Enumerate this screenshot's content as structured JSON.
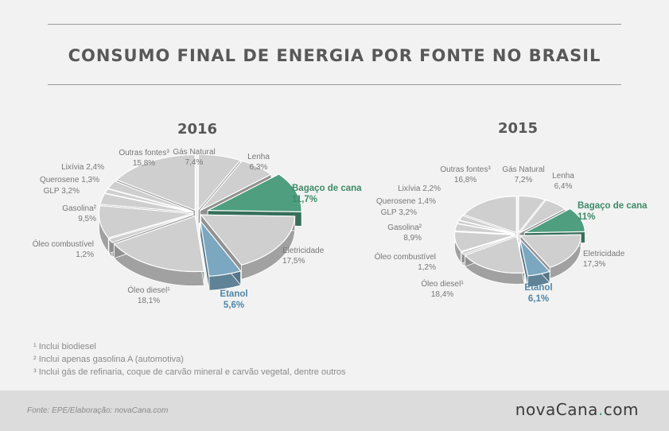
{
  "title": "CONSUMO FINAL DE ENERGIA POR FONTE NO BRASIL",
  "colors": {
    "neutral": "#cfcfcf",
    "bagaco": "#4f9e80",
    "etanol": "#7ba7c0",
    "bagaco_text": "#3d8a68",
    "etanol_text": "#4f86a6"
  },
  "chart_data": [
    {
      "type": "pie",
      "title": "2016",
      "slices": [
        {
          "label": "Gás Natural",
          "value_label": "7,4%",
          "value": 7.4
        },
        {
          "label": "Lenha",
          "value_label": "6,3%",
          "value": 6.3
        },
        {
          "label": "Bagaço de cana",
          "value_label": "11,7%",
          "value": 11.7,
          "highlight": "bagaco"
        },
        {
          "label": "Eletricidade",
          "value_label": "17,5%",
          "value": 17.5
        },
        {
          "label": "Etanol",
          "value_label": "5,6%",
          "value": 5.6,
          "highlight": "etanol"
        },
        {
          "label": "Óleo diesel¹",
          "value_label": "18,1%",
          "value": 18.1
        },
        {
          "label": "Óleo combustível",
          "value_label": "1,2%",
          "value": 1.2
        },
        {
          "label": "Gasolina²",
          "value_label": "9,5%",
          "value": 9.5
        },
        {
          "label": "GLP",
          "value_label": "3,2%",
          "value": 3.2
        },
        {
          "label": "Querosene",
          "value_label": "1,3%",
          "value": 1.3
        },
        {
          "label": "Lixívia",
          "value_label": "2,4%",
          "value": 2.4
        },
        {
          "label": "Outras fontes³",
          "value_label": "15,8%",
          "value": 15.8
        }
      ]
    },
    {
      "type": "pie",
      "title": "2015",
      "slices": [
        {
          "label": "Gás Natural",
          "value_label": "7,2%",
          "value": 7.2
        },
        {
          "label": "Lenha",
          "value_label": "6,4%",
          "value": 6.4
        },
        {
          "label": "Bagaço de cana",
          "value_label": "11%",
          "value": 11.0,
          "highlight": "bagaco"
        },
        {
          "label": "Eletricidade",
          "value_label": "17,3%",
          "value": 17.3
        },
        {
          "label": "Etanol",
          "value_label": "6,1%",
          "value": 6.1,
          "highlight": "etanol"
        },
        {
          "label": "Óleo diesel¹",
          "value_label": "18,4%",
          "value": 18.4
        },
        {
          "label": "Óleo combustível",
          "value_label": "1,2%",
          "value": 1.2
        },
        {
          "label": "Gasolina²",
          "value_label": "8,9%",
          "value": 8.9
        },
        {
          "label": "GLP",
          "value_label": "3,2%",
          "value": 3.2
        },
        {
          "label": "Querosene",
          "value_label": "1,4%",
          "value": 1.4
        },
        {
          "label": "Lixívia",
          "value_label": "2,2%",
          "value": 2.2
        },
        {
          "label": "Outras fontes³",
          "value_label": "16,8%",
          "value": 16.8
        }
      ]
    }
  ],
  "footnotes": [
    "¹ Inclui biodiesel",
    "² Inclui apenas gasolina A (automotiva)",
    "³ Inclui gás de refinaria, coque de carvão mineral e carvão vegetal, dentre outros"
  ],
  "source": "Fonte: EPE/Elaboração: novaCana.com",
  "logo": {
    "name": "novaCana",
    "suffix": "com"
  }
}
